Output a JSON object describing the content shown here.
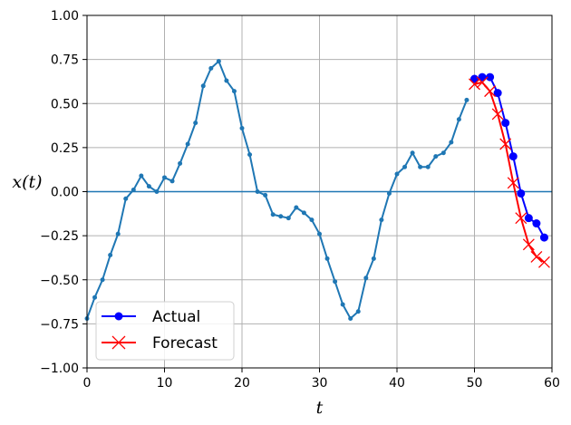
{
  "chart_data": {
    "type": "line",
    "title": "",
    "xlabel": "t",
    "ylabel": "x(t)",
    "xlim": [
      0,
      60
    ],
    "ylim": [
      -1.0,
      1.0
    ],
    "xticks": [
      0,
      10,
      20,
      30,
      40,
      50,
      60
    ],
    "yticks": [
      -1.0,
      -0.75,
      -0.5,
      -0.25,
      0.0,
      0.25,
      0.5,
      0.75,
      1.0
    ],
    "xtick_labels": [
      "0",
      "10",
      "20",
      "30",
      "40",
      "50",
      "60"
    ],
    "ytick_labels": [
      "−1.00",
      "−0.75",
      "−0.50",
      "−0.25",
      "0.00",
      "0.25",
      "0.50",
      "0.75",
      "1.00"
    ],
    "grid": true,
    "zero_line": 0.0,
    "legend_position": "lower-left",
    "legend": {
      "actual": "Actual",
      "forecast": "Forecast"
    },
    "series": [
      {
        "key": "history",
        "color": "#1f77b4",
        "marker": "small-dot",
        "x": [
          0,
          1,
          2,
          3,
          4,
          5,
          6,
          7,
          8,
          9,
          10,
          11,
          12,
          13,
          14,
          15,
          16,
          17,
          18,
          19,
          20,
          21,
          22,
          23,
          24,
          25,
          26,
          27,
          28,
          29,
          30,
          31,
          32,
          33,
          34,
          35,
          36,
          37,
          38,
          39,
          40,
          41,
          42,
          43,
          44,
          45,
          46,
          47,
          48,
          49
        ],
        "y": [
          -0.72,
          -0.6,
          -0.5,
          -0.36,
          -0.24,
          -0.04,
          0.01,
          0.09,
          0.03,
          0.0,
          0.08,
          0.06,
          0.16,
          0.27,
          0.39,
          0.6,
          0.7,
          0.74,
          0.63,
          0.57,
          0.36,
          0.21,
          0.0,
          -0.02,
          -0.13,
          -0.14,
          -0.15,
          -0.09,
          -0.12,
          -0.16,
          -0.24,
          -0.38,
          -0.51,
          -0.64,
          -0.72,
          -0.68,
          -0.49,
          -0.38,
          -0.16,
          -0.01,
          0.1,
          0.14,
          0.22,
          0.14,
          0.14,
          0.2,
          0.22,
          0.28,
          0.41,
          0.52
        ]
      },
      {
        "key": "actual",
        "name": "Actual",
        "color": "#0000ff",
        "marker": "circle",
        "x": [
          50,
          51,
          52,
          53,
          54,
          55,
          56,
          57,
          58,
          59
        ],
        "y": [
          0.64,
          0.65,
          0.65,
          0.56,
          0.39,
          0.2,
          -0.01,
          -0.15,
          -0.18,
          -0.26
        ]
      },
      {
        "key": "forecast",
        "name": "Forecast",
        "color": "#ff0000",
        "marker": "x",
        "x": [
          50,
          51,
          52,
          53,
          54,
          55,
          56,
          57,
          58,
          59
        ],
        "y": [
          0.61,
          0.62,
          0.57,
          0.44,
          0.27,
          0.05,
          -0.15,
          -0.3,
          -0.37,
          -0.4
        ]
      }
    ]
  }
}
